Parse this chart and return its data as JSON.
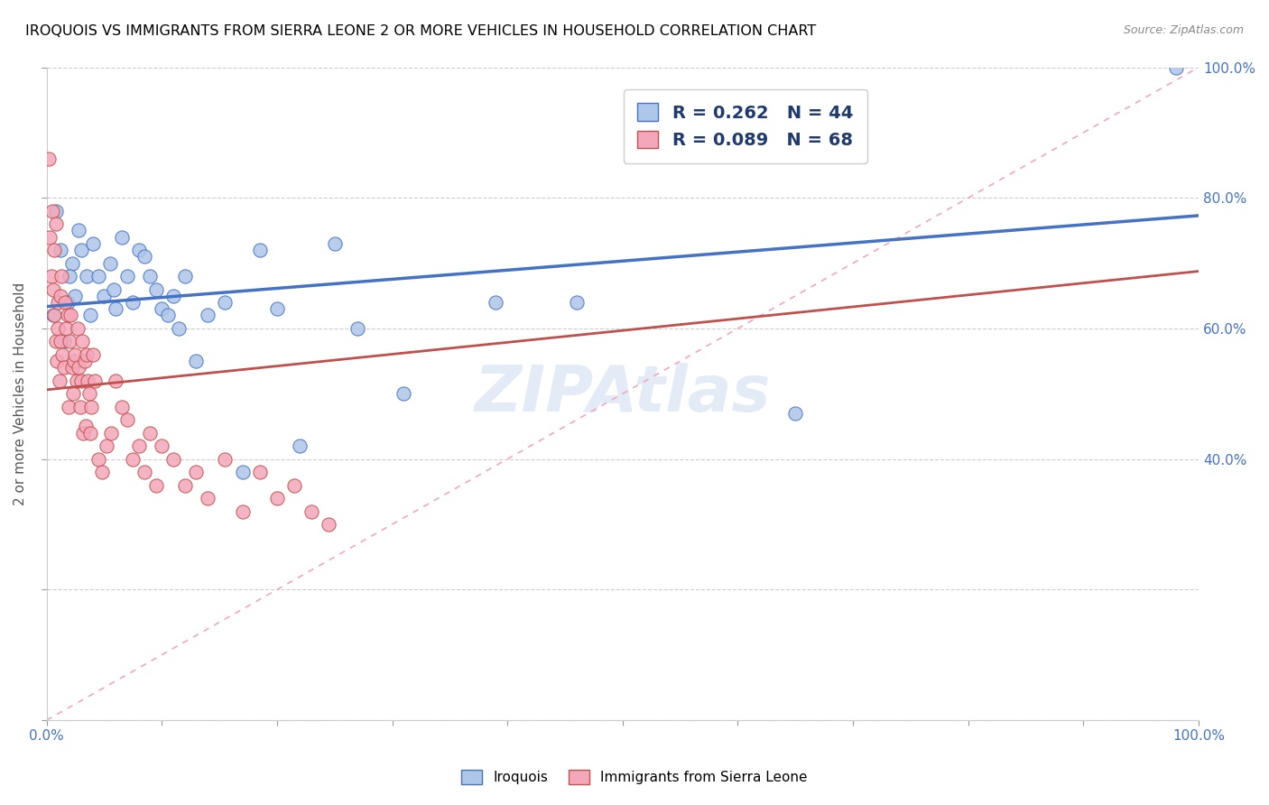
{
  "title": "IROQUOIS VS IMMIGRANTS FROM SIERRA LEONE 2 OR MORE VEHICLES IN HOUSEHOLD CORRELATION CHART",
  "source": "Source: ZipAtlas.com",
  "ylabel": "2 or more Vehicles in Household",
  "xlim": [
    0,
    1
  ],
  "ylim": [
    0,
    1
  ],
  "legend_labels": [
    "Iroquois",
    "Immigrants from Sierra Leone"
  ],
  "R_iroquois": 0.262,
  "N_iroquois": 44,
  "R_sierra_leone": 0.089,
  "N_sierra_leone": 68,
  "color_iroquois": "#aec6e8",
  "color_sierra_leone": "#f4a7b9",
  "color_iroquois_line": "#4472c4",
  "color_sierra_leone_line": "#c0504d",
  "watermark": "ZIPAtlas",
  "iroquois_x": [
    0.006,
    0.012,
    0.008,
    0.018,
    0.022,
    0.028,
    0.015,
    0.02,
    0.025,
    0.03,
    0.035,
    0.038,
    0.04,
    0.045,
    0.05,
    0.055,
    0.058,
    0.06,
    0.065,
    0.07,
    0.075,
    0.08,
    0.085,
    0.09,
    0.095,
    0.1,
    0.105,
    0.11,
    0.115,
    0.12,
    0.13,
    0.14,
    0.155,
    0.17,
    0.185,
    0.2,
    0.22,
    0.25,
    0.27,
    0.31,
    0.39,
    0.46,
    0.65,
    0.98
  ],
  "iroquois_y": [
    0.62,
    0.72,
    0.78,
    0.64,
    0.7,
    0.75,
    0.58,
    0.68,
    0.65,
    0.72,
    0.68,
    0.62,
    0.73,
    0.68,
    0.65,
    0.7,
    0.66,
    0.63,
    0.74,
    0.68,
    0.64,
    0.72,
    0.71,
    0.68,
    0.66,
    0.63,
    0.62,
    0.65,
    0.6,
    0.68,
    0.55,
    0.62,
    0.64,
    0.38,
    0.72,
    0.63,
    0.42,
    0.73,
    0.6,
    0.5,
    0.64,
    0.64,
    0.47,
    1.0
  ],
  "sierra_leone_x": [
    0.002,
    0.003,
    0.004,
    0.005,
    0.006,
    0.007,
    0.007,
    0.008,
    0.008,
    0.009,
    0.01,
    0.01,
    0.011,
    0.012,
    0.012,
    0.013,
    0.014,
    0.015,
    0.016,
    0.017,
    0.018,
    0.019,
    0.02,
    0.021,
    0.022,
    0.023,
    0.024,
    0.025,
    0.026,
    0.027,
    0.028,
    0.029,
    0.03,
    0.031,
    0.032,
    0.033,
    0.034,
    0.035,
    0.036,
    0.037,
    0.038,
    0.039,
    0.04,
    0.042,
    0.045,
    0.048,
    0.052,
    0.056,
    0.06,
    0.065,
    0.07,
    0.075,
    0.08,
    0.085,
    0.09,
    0.095,
    0.1,
    0.11,
    0.12,
    0.13,
    0.14,
    0.155,
    0.17,
    0.185,
    0.2,
    0.215,
    0.23,
    0.245
  ],
  "sierra_leone_y": [
    0.86,
    0.74,
    0.68,
    0.78,
    0.66,
    0.72,
    0.62,
    0.58,
    0.76,
    0.55,
    0.64,
    0.6,
    0.52,
    0.58,
    0.65,
    0.68,
    0.56,
    0.54,
    0.64,
    0.6,
    0.62,
    0.48,
    0.58,
    0.62,
    0.54,
    0.5,
    0.55,
    0.56,
    0.52,
    0.6,
    0.54,
    0.48,
    0.52,
    0.58,
    0.44,
    0.55,
    0.45,
    0.56,
    0.52,
    0.5,
    0.44,
    0.48,
    0.56,
    0.52,
    0.4,
    0.38,
    0.42,
    0.44,
    0.52,
    0.48,
    0.46,
    0.4,
    0.42,
    0.38,
    0.44,
    0.36,
    0.42,
    0.4,
    0.36,
    0.38,
    0.34,
    0.4,
    0.32,
    0.38,
    0.34,
    0.36,
    0.32,
    0.3
  ]
}
